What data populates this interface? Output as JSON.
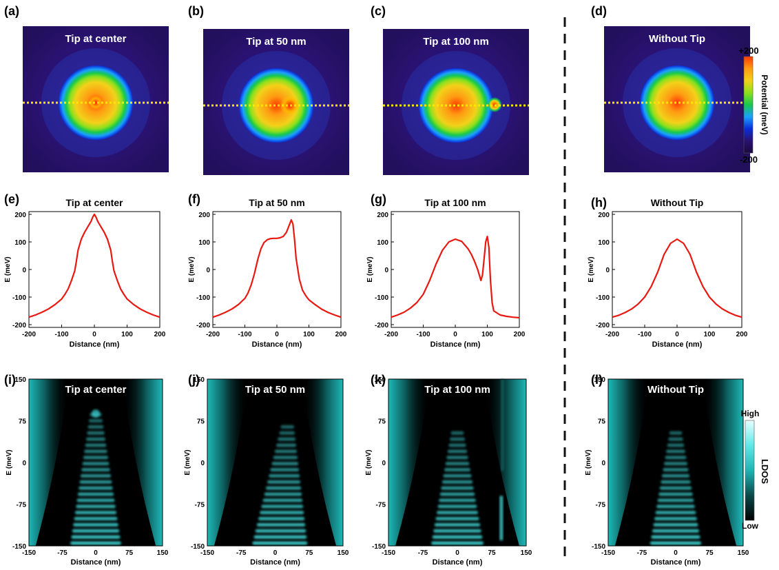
{
  "panel_letters": [
    "(a)",
    "(b)",
    "(c)",
    "(d)",
    "(e)",
    "(f)",
    "(g)",
    "(h)",
    "(i)",
    "(j)",
    "(k)",
    "(l)"
  ],
  "colorbar_potential": {
    "label": "Potential (meV)",
    "max": "+200",
    "min": "-200",
    "colors": [
      "#1a0a3d",
      "#2a1270",
      "#0a2cd8",
      "#1aa0ff",
      "#16c94e",
      "#8de01c",
      "#f2d21a",
      "#ff9a12",
      "#ff3a00"
    ]
  },
  "colorbar_ldos": {
    "label": "LDOS",
    "high": "High",
    "low": "Low",
    "colors": [
      "#000000",
      "#0a4a4a",
      "#1fb5b5",
      "#5fe8e8",
      "#e8ffff"
    ]
  },
  "chart_data": [
    {
      "type": "heatmap",
      "title": "Tip at center",
      "tip_position_nm": 0,
      "dashed_line_color": "#ffe600"
    },
    {
      "type": "heatmap",
      "title": "Tip at 50 nm",
      "tip_position_nm": 50,
      "dashed_line_color": "#ffe600"
    },
    {
      "type": "heatmap",
      "title": "Tip at 100 nm",
      "tip_position_nm": 100,
      "dashed_line_color": "#ffe600"
    },
    {
      "type": "heatmap",
      "title": "Without Tip",
      "tip_position_nm": null,
      "dashed_line_color": "#ffe600"
    },
    {
      "type": "line",
      "title": "Tip at center",
      "xlabel": "Distance (nm)",
      "ylabel": "E (meV)",
      "xlim": [
        -200,
        200
      ],
      "ylim": [
        -210,
        210
      ],
      "xticks": [
        -200,
        -100,
        0,
        100,
        200
      ],
      "yticks": [
        -200,
        -100,
        0,
        100,
        200
      ],
      "color": "#e8170f",
      "x": [
        -200,
        -180,
        -160,
        -140,
        -120,
        -100,
        -90,
        -80,
        -70,
        -60,
        -55,
        -50,
        -40,
        -30,
        -20,
        -10,
        -5,
        0,
        5,
        10,
        20,
        30,
        40,
        50,
        55,
        60,
        70,
        80,
        90,
        100,
        120,
        140,
        160,
        180,
        200
      ],
      "y": [
        -173,
        -165,
        -155,
        -143,
        -127,
        -107,
        -90,
        -70,
        -40,
        -5,
        30,
        70,
        110,
        135,
        155,
        175,
        190,
        200,
        190,
        175,
        155,
        135,
        110,
        70,
        30,
        -5,
        -40,
        -70,
        -90,
        -107,
        -127,
        -143,
        -155,
        -165,
        -173
      ]
    },
    {
      "type": "line",
      "title": "Tip at 50 nm",
      "xlabel": "Distance (nm)",
      "ylabel": "E (meV)",
      "xlim": [
        -200,
        200
      ],
      "ylim": [
        -210,
        210
      ],
      "xticks": [
        -200,
        -100,
        0,
        100,
        200
      ],
      "yticks": [
        -200,
        -100,
        0,
        100,
        200
      ],
      "color": "#e8170f",
      "x": [
        -200,
        -180,
        -160,
        -140,
        -120,
        -100,
        -90,
        -80,
        -70,
        -60,
        -50,
        -40,
        -30,
        -20,
        -10,
        0,
        10,
        20,
        30,
        40,
        45,
        50,
        55,
        60,
        70,
        80,
        90,
        100,
        120,
        140,
        160,
        180,
        200
      ],
      "y": [
        -173,
        -165,
        -155,
        -143,
        -127,
        -105,
        -85,
        -55,
        -15,
        35,
        75,
        98,
        108,
        112,
        113,
        113,
        115,
        120,
        135,
        165,
        180,
        165,
        110,
        40,
        -35,
        -75,
        -95,
        -110,
        -128,
        -144,
        -156,
        -165,
        -173
      ]
    },
    {
      "type": "line",
      "title": "Tip at 100 nm",
      "xlabel": "Distance (nm)",
      "ylabel": "E (meV)",
      "xlim": [
        -200,
        200
      ],
      "ylim": [
        -210,
        210
      ],
      "xticks": [
        -200,
        -100,
        0,
        100,
        200
      ],
      "yticks": [
        -200,
        -100,
        0,
        100,
        200
      ],
      "color": "#e8170f",
      "x": [
        -200,
        -180,
        -160,
        -140,
        -120,
        -100,
        -80,
        -60,
        -40,
        -20,
        0,
        20,
        40,
        50,
        60,
        70,
        75,
        80,
        85,
        90,
        95,
        100,
        105,
        110,
        115,
        120,
        140,
        160,
        180,
        200
      ],
      "y": [
        -173,
        -165,
        -155,
        -140,
        -120,
        -90,
        -40,
        20,
        70,
        100,
        110,
        102,
        75,
        55,
        30,
        0,
        -20,
        -40,
        -20,
        40,
        100,
        120,
        80,
        -40,
        -120,
        -150,
        -165,
        -170,
        -173,
        -175
      ]
    },
    {
      "type": "line",
      "title": "Without Tip",
      "xlabel": "Distance (nm)",
      "ylabel": "E (meV)",
      "xlim": [
        -200,
        200
      ],
      "ylim": [
        -210,
        210
      ],
      "xticks": [
        -200,
        -100,
        0,
        100,
        200
      ],
      "yticks": [
        -200,
        -100,
        0,
        100,
        200
      ],
      "color": "#e8170f",
      "x": [
        -200,
        -180,
        -160,
        -140,
        -120,
        -100,
        -80,
        -60,
        -40,
        -20,
        0,
        20,
        40,
        60,
        80,
        100,
        120,
        140,
        160,
        180,
        200
      ],
      "y": [
        -173,
        -166,
        -156,
        -143,
        -125,
        -100,
        -62,
        -10,
        55,
        95,
        110,
        95,
        55,
        -10,
        -62,
        -100,
        -125,
        -143,
        -156,
        -166,
        -173
      ]
    },
    {
      "type": "heatmap",
      "title": "Tip at center",
      "xlabel": "Distance (nm)",
      "ylabel": "E (meV)",
      "xlim": [
        -150,
        150
      ],
      "ylim": [
        -150,
        150
      ],
      "xticks": [
        -150,
        -75,
        0,
        75,
        150
      ],
      "yticks": [
        -150,
        -75,
        0,
        75,
        150
      ],
      "tip_position_nm": 0
    },
    {
      "type": "heatmap",
      "title": "Tip at 50 nm",
      "xlabel": "Distance (nm)",
      "ylabel": "E (meV)",
      "xlim": [
        -150,
        150
      ],
      "ylim": [
        -150,
        150
      ],
      "xticks": [
        -150,
        -75,
        0,
        75,
        150
      ],
      "yticks": [
        -150,
        -75,
        0,
        75,
        150
      ],
      "tip_position_nm": 50
    },
    {
      "type": "heatmap",
      "title": "Tip at 100 nm",
      "xlabel": "Distance (nm)",
      "ylabel": "E (meV)",
      "xlim": [
        -150,
        150
      ],
      "ylim": [
        -150,
        150
      ],
      "xticks": [
        -150,
        -75,
        0,
        75,
        150
      ],
      "yticks": [
        -150,
        -75,
        0,
        75,
        150
      ],
      "tip_position_nm": 100
    },
    {
      "type": "heatmap",
      "title": "Without Tip",
      "xlabel": "Distance (nm)",
      "ylabel": "E (meV)",
      "xlim": [
        -150,
        150
      ],
      "ylim": [
        -150,
        150
      ],
      "xticks": [
        -150,
        -75,
        0,
        75,
        150
      ],
      "yticks": [
        -150,
        -75,
        0,
        75,
        150
      ],
      "tip_position_nm": null
    }
  ]
}
